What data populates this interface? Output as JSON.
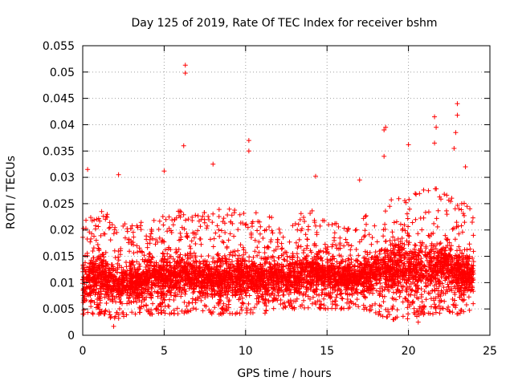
{
  "chart_data": {
    "type": "scatter",
    "title": "Day 125 of 2019, Rate Of TEC Index for receiver bshm",
    "xlabel": "GPS time / hours",
    "ylabel": "ROTI / TECUs",
    "xlim": [
      0,
      25
    ],
    "ylim": [
      0,
      0.055
    ],
    "xticks": [
      0,
      5,
      10,
      15,
      20,
      25
    ],
    "xtick_labels": [
      "0",
      "5",
      "10",
      "15",
      "20",
      "25"
    ],
    "yticks": [
      0,
      0.005,
      0.01,
      0.015,
      0.02,
      0.025,
      0.03,
      0.035,
      0.04,
      0.045,
      0.05,
      0.055
    ],
    "ytick_labels": [
      "0",
      "0.005",
      "0.01",
      "0.015",
      "0.02",
      "0.025",
      "0.03",
      "0.035",
      "0.04",
      "0.045",
      "0.05",
      "0.055"
    ],
    "grid": true,
    "marker": "+",
    "color": "#ff0000",
    "series": [
      {
        "name": "ROTI",
        "notable_points": [
          {
            "x": 6.3,
            "y": 0.0513
          },
          {
            "x": 6.3,
            "y": 0.0498
          },
          {
            "x": 6.2,
            "y": 0.036
          },
          {
            "x": 10.2,
            "y": 0.037
          },
          {
            "x": 10.2,
            "y": 0.035
          },
          {
            "x": 18.6,
            "y": 0.0395
          },
          {
            "x": 18.5,
            "y": 0.039
          },
          {
            "x": 18.5,
            "y": 0.034
          },
          {
            "x": 20.0,
            "y": 0.0362
          },
          {
            "x": 21.6,
            "y": 0.0415
          },
          {
            "x": 21.7,
            "y": 0.0395
          },
          {
            "x": 21.6,
            "y": 0.0365
          },
          {
            "x": 23.0,
            "y": 0.044
          },
          {
            "x": 23.0,
            "y": 0.0418
          },
          {
            "x": 22.9,
            "y": 0.0385
          },
          {
            "x": 22.8,
            "y": 0.0355
          },
          {
            "x": 0.3,
            "y": 0.0315
          },
          {
            "x": 2.2,
            "y": 0.0305
          },
          {
            "x": 5.0,
            "y": 0.0312
          },
          {
            "x": 8.0,
            "y": 0.0325
          },
          {
            "x": 14.3,
            "y": 0.0302
          },
          {
            "x": 17.0,
            "y": 0.0295
          },
          {
            "x": 23.5,
            "y": 0.032
          },
          {
            "x": 1.9,
            "y": 0.0017
          },
          {
            "x": 20.6,
            "y": 0.0025
          }
        ],
        "density_profile": {
          "hours": [
            0,
            1,
            2,
            3,
            4,
            5,
            6,
            7,
            8,
            9,
            10,
            11,
            12,
            13,
            14,
            15,
            16,
            17,
            18,
            19,
            20,
            21,
            22,
            23,
            24
          ],
          "typical_min": [
            0.004,
            0.004,
            0.003,
            0.004,
            0.004,
            0.004,
            0.004,
            0.005,
            0.004,
            0.004,
            0.004,
            0.004,
            0.005,
            0.005,
            0.005,
            0.005,
            0.005,
            0.005,
            0.004,
            0.003,
            0.003,
            0.004,
            0.004,
            0.004,
            0.005
          ],
          "typical_max": [
            0.022,
            0.024,
            0.022,
            0.021,
            0.022,
            0.023,
            0.024,
            0.023,
            0.024,
            0.024,
            0.024,
            0.023,
            0.022,
            0.023,
            0.024,
            0.022,
            0.021,
            0.022,
            0.025,
            0.026,
            0.027,
            0.028,
            0.029,
            0.026,
            0.024
          ],
          "center": [
            0.01,
            0.011,
            0.01,
            0.01,
            0.011,
            0.011,
            0.012,
            0.011,
            0.011,
            0.011,
            0.011,
            0.011,
            0.011,
            0.011,
            0.012,
            0.012,
            0.011,
            0.011,
            0.012,
            0.013,
            0.013,
            0.013,
            0.013,
            0.012,
            0.011
          ]
        }
      }
    ]
  }
}
